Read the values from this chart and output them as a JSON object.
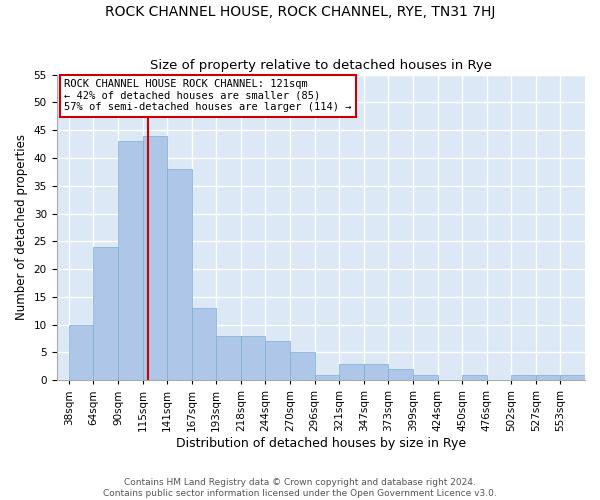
{
  "title": "ROCK CHANNEL HOUSE, ROCK CHANNEL, RYE, TN31 7HJ",
  "subtitle": "Size of property relative to detached houses in Rye",
  "xlabel": "Distribution of detached houses by size in Rye",
  "ylabel": "Number of detached properties",
  "categories": [
    "38sqm",
    "64sqm",
    "90sqm",
    "115sqm",
    "141sqm",
    "167sqm",
    "193sqm",
    "218sqm",
    "244sqm",
    "270sqm",
    "296sqm",
    "321sqm",
    "347sqm",
    "373sqm",
    "399sqm",
    "424sqm",
    "450sqm",
    "476sqm",
    "502sqm",
    "527sqm",
    "553sqm"
  ],
  "values": [
    10,
    24,
    43,
    44,
    38,
    13,
    8,
    8,
    7,
    5,
    1,
    3,
    3,
    2,
    1,
    0,
    1,
    0,
    1,
    1,
    1
  ],
  "bar_color": "#aec6e8",
  "bar_edgecolor": "#7aadd4",
  "bar_width": 1.0,
  "vline_color": "#cc0000",
  "annotation_text": "ROCK CHANNEL HOUSE ROCK CHANNEL: 121sqm\n← 42% of detached houses are smaller (85)\n57% of semi-detached houses are larger (114) →",
  "annotation_box_edgecolor": "#cc0000",
  "annotation_box_facecolor": "#ffffff",
  "ylim": [
    0,
    55
  ],
  "yticks": [
    0,
    5,
    10,
    15,
    20,
    25,
    30,
    35,
    40,
    45,
    50,
    55
  ],
  "bg_color": "#dce8f5",
  "grid_color": "#ffffff",
  "footer": "Contains HM Land Registry data © Crown copyright and database right 2024.\nContains public sector information licensed under the Open Government Licence v3.0.",
  "title_fontsize": 10,
  "subtitle_fontsize": 9.5,
  "xlabel_fontsize": 9,
  "ylabel_fontsize": 8.5,
  "tick_fontsize": 7.5,
  "annotation_fontsize": 7.5,
  "footer_fontsize": 6.5
}
